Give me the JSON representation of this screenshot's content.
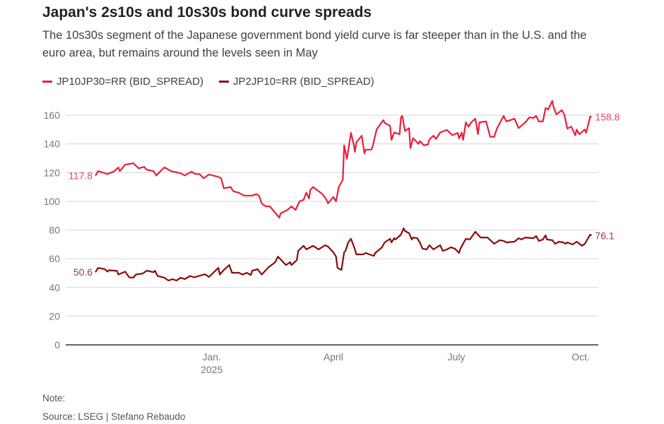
{
  "chart_data": {
    "type": "line",
    "title": "Japan's 2s10s and 10s30s bond curve spreads",
    "subtitle": "The 10s30s segment of the Japanese government bond yield curve is far steeper than in the U.S. and the euro area, but remains around the levels seen in May",
    "note": "Note:",
    "source": "Source: LSEG | Stefano Rebaudo",
    "xlabel": "",
    "ylabel": "",
    "xlim": [
      "2024-09-15",
      "2025-10-14"
    ],
    "ylim": [
      0,
      170
    ],
    "y_ticks": [
      0,
      20,
      40,
      60,
      80,
      100,
      120,
      140,
      160
    ],
    "x_ticks": [
      {
        "date": "2025-01-01",
        "label": "Jan.",
        "sublabel": "2025"
      },
      {
        "date": "2025-04-01",
        "label": "April",
        "sublabel": ""
      },
      {
        "date": "2025-07-01",
        "label": "July",
        "sublabel": ""
      },
      {
        "date": "2025-10-01",
        "label": "Oct.",
        "sublabel": ""
      }
    ],
    "grid": "horizontal",
    "legend_position": "top-left",
    "series": [
      {
        "name": "JP10JP30=RR (BID_SPREAD)",
        "color": "#e8203a",
        "label_color": "#e8455a",
        "start_label": "117.8",
        "end_label": "158.8",
        "points": [
          [
            "2024-10-07",
            117.8
          ],
          [
            "2024-10-09",
            121
          ],
          [
            "2024-10-16",
            119
          ],
          [
            "2024-10-21",
            121
          ],
          [
            "2024-10-24",
            123.6
          ],
          [
            "2024-10-25",
            121
          ],
          [
            "2024-10-29",
            125.5
          ],
          [
            "2024-11-04",
            126.5
          ],
          [
            "2024-11-08",
            123
          ],
          [
            "2024-11-12",
            124
          ],
          [
            "2024-11-14",
            122
          ],
          [
            "2024-11-19",
            121
          ],
          [
            "2024-11-21",
            118
          ],
          [
            "2024-11-27",
            123.6
          ],
          [
            "2024-12-02",
            121
          ],
          [
            "2024-12-09",
            119.6
          ],
          [
            "2024-12-12",
            118
          ],
          [
            "2024-12-17",
            120.6
          ],
          [
            "2024-12-20",
            119
          ],
          [
            "2024-12-23",
            119
          ],
          [
            "2024-12-26",
            116
          ],
          [
            "2024-12-30",
            118.7
          ],
          [
            "2025-01-06",
            117
          ],
          [
            "2025-01-08",
            116
          ],
          [
            "2025-01-10",
            109
          ],
          [
            "2025-01-15",
            110
          ],
          [
            "2025-01-17",
            107
          ],
          [
            "2025-01-21",
            106
          ],
          [
            "2025-01-25",
            104
          ],
          [
            "2025-01-31",
            104
          ],
          [
            "2025-02-03",
            105
          ],
          [
            "2025-02-05",
            104
          ],
          [
            "2025-02-07",
            98.5
          ],
          [
            "2025-02-10",
            96.5
          ],
          [
            "2025-02-13",
            96.5
          ],
          [
            "2025-02-20",
            88.6
          ],
          [
            "2025-02-21",
            91.6
          ],
          [
            "2025-02-26",
            94
          ],
          [
            "2025-03-01",
            96.5
          ],
          [
            "2025-03-04",
            94
          ],
          [
            "2025-03-07",
            100
          ],
          [
            "2025-03-10",
            101
          ],
          [
            "2025-03-12",
            106
          ],
          [
            "2025-03-14",
            102
          ],
          [
            "2025-03-15",
            108
          ],
          [
            "2025-03-17",
            110
          ],
          [
            "2025-03-24",
            105
          ],
          [
            "2025-03-27",
            101
          ],
          [
            "2025-03-28",
            98.5
          ],
          [
            "2025-04-01",
            103
          ],
          [
            "2025-04-03",
            100
          ],
          [
            "2025-04-05",
            110
          ],
          [
            "2025-04-08",
            115
          ],
          [
            "2025-04-09",
            139
          ],
          [
            "2025-04-11",
            129.5
          ],
          [
            "2025-04-14",
            147.7
          ],
          [
            "2025-04-16",
            140
          ],
          [
            "2025-04-17",
            134.4
          ],
          [
            "2025-04-18",
            141
          ],
          [
            "2025-04-22",
            145.7
          ],
          [
            "2025-04-24",
            133.4
          ],
          [
            "2025-04-25",
            136
          ],
          [
            "2025-04-29",
            136
          ],
          [
            "2025-04-30",
            138
          ],
          [
            "2025-05-03",
            150
          ],
          [
            "2025-05-08",
            156.6
          ],
          [
            "2025-05-09",
            154.6
          ],
          [
            "2025-05-13",
            152.6
          ],
          [
            "2025-05-14",
            142.8
          ],
          [
            "2025-05-16",
            148
          ],
          [
            "2025-05-20",
            146.7
          ],
          [
            "2025-05-21",
            158.5
          ],
          [
            "2025-05-22",
            159.5
          ],
          [
            "2025-05-24",
            149
          ],
          [
            "2025-05-27",
            151
          ],
          [
            "2025-05-28",
            137
          ],
          [
            "2025-05-30",
            144
          ],
          [
            "2025-06-03",
            140
          ],
          [
            "2025-06-04",
            142
          ],
          [
            "2025-06-07",
            139
          ],
          [
            "2025-06-10",
            139.5
          ],
          [
            "2025-06-11",
            143
          ],
          [
            "2025-06-14",
            145.7
          ],
          [
            "2025-06-16",
            143.5
          ],
          [
            "2025-06-19",
            148
          ],
          [
            "2025-06-24",
            149.7
          ],
          [
            "2025-06-28",
            146
          ],
          [
            "2025-07-02",
            147.7
          ],
          [
            "2025-07-03",
            143.8
          ],
          [
            "2025-07-05",
            148
          ],
          [
            "2025-07-06",
            142.8
          ],
          [
            "2025-07-08",
            155
          ],
          [
            "2025-07-10",
            152
          ],
          [
            "2025-07-12",
            155
          ],
          [
            "2025-07-15",
            157.6
          ],
          [
            "2025-07-17",
            146.7
          ],
          [
            "2025-07-18",
            155
          ],
          [
            "2025-07-23",
            155.6
          ],
          [
            "2025-07-26",
            145
          ],
          [
            "2025-07-29",
            145
          ],
          [
            "2025-07-31",
            150.7
          ],
          [
            "2025-08-05",
            159.5
          ],
          [
            "2025-08-07",
            155.6
          ],
          [
            "2025-08-13",
            157.6
          ],
          [
            "2025-08-16",
            151
          ],
          [
            "2025-08-21",
            155
          ],
          [
            "2025-08-24",
            158.5
          ],
          [
            "2025-08-27",
            158
          ],
          [
            "2025-08-29",
            159.5
          ],
          [
            "2025-08-31",
            155.6
          ],
          [
            "2025-09-03",
            155.6
          ],
          [
            "2025-09-05",
            165
          ],
          [
            "2025-09-07",
            164
          ],
          [
            "2025-09-10",
            170
          ],
          [
            "2025-09-11",
            165.4
          ],
          [
            "2025-09-13",
            160.5
          ],
          [
            "2025-09-17",
            163.5
          ],
          [
            "2025-09-19",
            160
          ],
          [
            "2025-09-21",
            150.7
          ],
          [
            "2025-09-24",
            152
          ],
          [
            "2025-09-27",
            146
          ],
          [
            "2025-09-28",
            150
          ],
          [
            "2025-09-30",
            146.7
          ],
          [
            "2025-10-04",
            150
          ],
          [
            "2025-10-05",
            147.7
          ],
          [
            "2025-10-08",
            159
          ],
          [
            "2025-10-09",
            158.8
          ]
        ]
      },
      {
        "name": "JP2JP10=RR (BID_SPREAD)",
        "color": "#8b0a0a",
        "label_color": "#a33a3a",
        "start_label": "50.6",
        "end_label": "76.1",
        "points": [
          [
            "2024-10-07",
            50.6
          ],
          [
            "2024-10-09",
            53.6
          ],
          [
            "2024-10-14",
            52.7
          ],
          [
            "2024-10-16",
            51
          ],
          [
            "2024-10-17",
            52
          ],
          [
            "2024-10-23",
            51.5
          ],
          [
            "2024-10-24",
            49
          ],
          [
            "2024-10-29",
            51
          ],
          [
            "2024-11-01",
            47
          ],
          [
            "2024-11-04",
            46.8
          ],
          [
            "2024-11-06",
            49
          ],
          [
            "2024-11-11",
            49.7
          ],
          [
            "2024-11-14",
            51.7
          ],
          [
            "2024-11-19",
            50.6
          ],
          [
            "2024-11-20",
            51.7
          ],
          [
            "2024-11-22",
            48
          ],
          [
            "2024-11-27",
            46.8
          ],
          [
            "2024-11-30",
            44.8
          ],
          [
            "2024-12-03",
            45.8
          ],
          [
            "2024-12-06",
            44.8
          ],
          [
            "2024-12-09",
            46.8
          ],
          [
            "2024-12-12",
            45.8
          ],
          [
            "2024-12-16",
            48
          ],
          [
            "2024-12-19",
            47
          ],
          [
            "2024-12-27",
            49.2
          ],
          [
            "2024-12-30",
            47.3
          ],
          [
            "2025-01-06",
            53.7
          ],
          [
            "2025-01-07",
            49
          ],
          [
            "2025-01-10",
            52.2
          ],
          [
            "2025-01-14",
            55.6
          ],
          [
            "2025-01-16",
            50.2
          ],
          [
            "2025-01-21",
            50.2
          ],
          [
            "2025-01-24",
            49
          ],
          [
            "2025-01-27",
            50.2
          ],
          [
            "2025-01-30",
            48.7
          ],
          [
            "2025-01-31",
            51.7
          ],
          [
            "2025-02-04",
            52.7
          ],
          [
            "2025-02-07",
            49
          ],
          [
            "2025-02-12",
            54
          ],
          [
            "2025-02-17",
            57.6
          ],
          [
            "2025-02-19",
            61.5
          ],
          [
            "2025-02-25",
            55.6
          ],
          [
            "2025-02-28",
            57.6
          ],
          [
            "2025-03-01",
            55.6
          ],
          [
            "2025-03-05",
            59
          ],
          [
            "2025-03-06",
            65.5
          ],
          [
            "2025-03-10",
            69
          ],
          [
            "2025-03-12",
            66.5
          ],
          [
            "2025-03-17",
            69
          ],
          [
            "2025-03-21",
            66.5
          ],
          [
            "2025-03-26",
            69.4
          ],
          [
            "2025-03-28",
            68.5
          ],
          [
            "2025-04-01",
            64.5
          ],
          [
            "2025-04-03",
            61.5
          ],
          [
            "2025-04-04",
            53.7
          ],
          [
            "2025-04-07",
            52.2
          ],
          [
            "2025-04-09",
            64.5
          ],
          [
            "2025-04-10",
            65.5
          ],
          [
            "2025-04-12",
            71.4
          ],
          [
            "2025-04-14",
            73.9
          ],
          [
            "2025-04-17",
            66.5
          ],
          [
            "2025-04-18",
            63
          ],
          [
            "2025-04-23",
            63
          ],
          [
            "2025-04-25",
            64
          ],
          [
            "2025-04-29",
            62.5
          ],
          [
            "2025-05-01",
            62
          ],
          [
            "2025-05-02",
            64
          ],
          [
            "2025-05-07",
            68
          ],
          [
            "2025-05-09",
            71.4
          ],
          [
            "2025-05-13",
            73.9
          ],
          [
            "2025-05-14",
            71.4
          ],
          [
            "2025-05-16",
            74.3
          ],
          [
            "2025-05-17",
            73.4
          ],
          [
            "2025-05-21",
            76.8
          ],
          [
            "2025-05-23",
            81.2
          ],
          [
            "2025-05-24",
            79.3
          ],
          [
            "2025-05-27",
            77.8
          ],
          [
            "2025-05-29",
            73.4
          ],
          [
            "2025-05-30",
            74.8
          ],
          [
            "2025-06-02",
            74.3
          ],
          [
            "2025-06-04",
            71.4
          ],
          [
            "2025-06-06",
            67
          ],
          [
            "2025-06-09",
            66.5
          ],
          [
            "2025-06-11",
            69.4
          ],
          [
            "2025-06-14",
            66.5
          ],
          [
            "2025-06-19",
            69.4
          ],
          [
            "2025-06-21",
            65.5
          ],
          [
            "2025-06-24",
            66.5
          ],
          [
            "2025-06-27",
            68
          ],
          [
            "2025-06-30",
            67
          ],
          [
            "2025-07-03",
            64
          ],
          [
            "2025-07-04",
            67
          ],
          [
            "2025-07-08",
            73.9
          ],
          [
            "2025-07-11",
            73.4
          ],
          [
            "2025-07-15",
            78.8
          ],
          [
            "2025-07-19",
            74.8
          ],
          [
            "2025-07-24",
            74.8
          ],
          [
            "2025-07-29",
            70.4
          ],
          [
            "2025-08-02",
            72.9
          ],
          [
            "2025-08-05",
            72.4
          ],
          [
            "2025-08-07",
            71.4
          ],
          [
            "2025-08-13",
            71.9
          ],
          [
            "2025-08-16",
            74.3
          ],
          [
            "2025-08-18",
            73.4
          ],
          [
            "2025-08-21",
            74.8
          ],
          [
            "2025-08-27",
            74.3
          ],
          [
            "2025-08-29",
            75.8
          ],
          [
            "2025-08-31",
            72.4
          ],
          [
            "2025-09-03",
            73.4
          ],
          [
            "2025-09-05",
            76.3
          ],
          [
            "2025-09-06",
            73.4
          ],
          [
            "2025-09-10",
            72.9
          ],
          [
            "2025-09-12",
            70.4
          ],
          [
            "2025-09-15",
            71.9
          ],
          [
            "2025-09-18",
            71.4
          ],
          [
            "2025-09-20",
            70.4
          ],
          [
            "2025-09-21",
            71.4
          ],
          [
            "2025-09-25",
            69.9
          ],
          [
            "2025-09-28",
            71.9
          ],
          [
            "2025-10-02",
            69
          ],
          [
            "2025-10-04",
            70.4
          ],
          [
            "2025-10-08",
            76.8
          ],
          [
            "2025-10-09",
            76.1
          ]
        ]
      }
    ]
  }
}
